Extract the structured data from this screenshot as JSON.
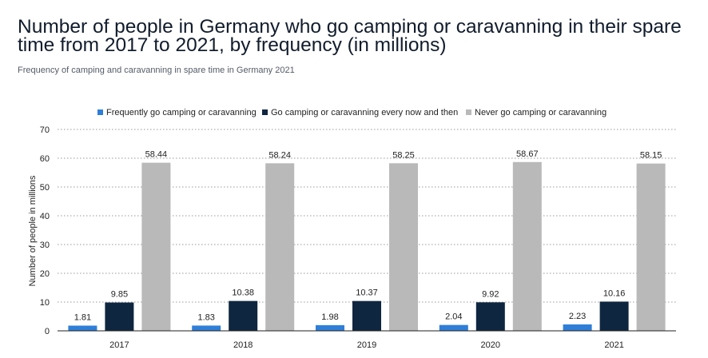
{
  "header": {
    "title": "Number of people in Germany who go camping or caravanning in their spare time from 2017 to 2021, by frequency (in millions)",
    "subtitle": "Frequency of camping and caravanning in spare time in Germany 2021"
  },
  "colors": {
    "frequently": "#2f7fd8",
    "now_and_then": "#0f2640",
    "never": "#b9b9b9",
    "grid": "#9a9a9a",
    "text": "#222222"
  },
  "chart_data": {
    "type": "bar",
    "categories": [
      "2017",
      "2018",
      "2019",
      "2020",
      "2021"
    ],
    "series": [
      {
        "name": "Frequently go camping or caravanning",
        "values": [
          1.81,
          1.83,
          1.98,
          2.04,
          2.23
        ]
      },
      {
        "name": "Go camping or caravanning every now and then",
        "values": [
          9.85,
          10.38,
          10.37,
          9.92,
          10.16
        ]
      },
      {
        "name": "Never go camping or caravanning",
        "values": [
          58.44,
          58.24,
          58.25,
          58.67,
          58.15
        ]
      }
    ],
    "ylabel": "Number of people in millions",
    "xlabel": "",
    "ylim": [
      0,
      70
    ],
    "yticks": [
      0,
      10,
      20,
      30,
      40,
      50,
      60,
      70
    ],
    "grid": true,
    "legend_position": "top"
  }
}
